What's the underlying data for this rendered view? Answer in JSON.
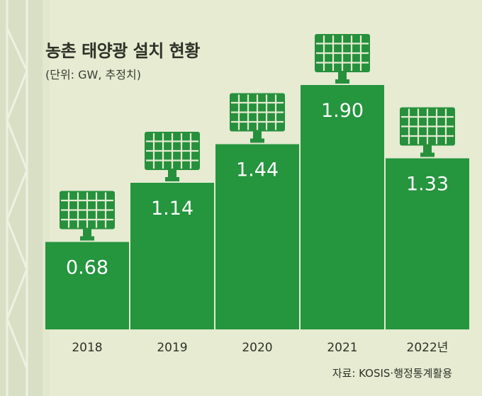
{
  "chart_data": {
    "type": "bar",
    "title": "농촌 태양광 설치 현황",
    "subtitle": "(단위: GW, 추정치)",
    "categories": [
      "2018",
      "2019",
      "2020",
      "2021",
      "2022년"
    ],
    "values": [
      0.68,
      1.14,
      1.44,
      1.9,
      1.33
    ],
    "value_labels": [
      "0.68",
      "1.14",
      "1.44",
      "1.90",
      "1.33"
    ],
    "unit": "GW",
    "xlabel": "",
    "ylabel": "",
    "ylim": [
      0,
      1.9
    ],
    "grid": false,
    "legend": "none",
    "source": "자료: KOSIS·행정통계활용",
    "colors": {
      "bar": "#25953e",
      "panel": "#26903c",
      "panel_grid": "#e6ebd2",
      "value_text": "#ffffff",
      "background": "#e6ebd2"
    },
    "icon": "solar-panel-icon"
  }
}
